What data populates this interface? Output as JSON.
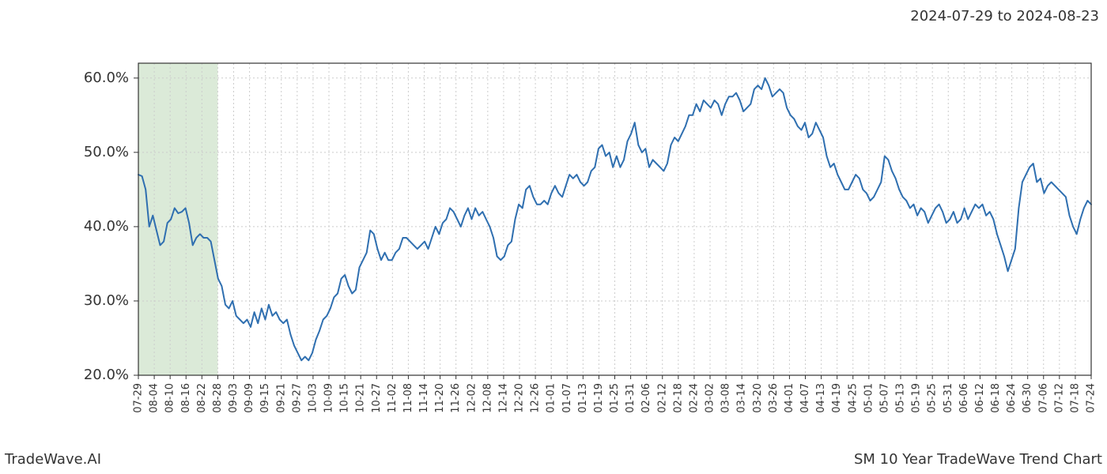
{
  "header": {
    "date_range": "2024-07-29 to 2024-08-23"
  },
  "footer": {
    "brand": "TradeWave.AI",
    "chart_title": "SM 10 Year TradeWave Trend Chart"
  },
  "chart": {
    "type": "line",
    "background_color": "#ffffff",
    "plot_border_color": "#333333",
    "plot_border_width": 1.2,
    "grid_color": "#cccccc",
    "grid_dash": "2,3",
    "line_color": "#2f6fb0",
    "line_width": 2.0,
    "highlight_band": {
      "fill": "#dbead8",
      "x_start_label": "07-29",
      "x_end_label": "08-28"
    },
    "y_axis": {
      "min": 20.0,
      "max": 62.0,
      "ticks": [
        20.0,
        30.0,
        40.0,
        50.0,
        60.0
      ],
      "tick_labels": [
        "20.0%",
        "30.0%",
        "40.0%",
        "50.0%",
        "60.0%"
      ],
      "label_fontsize": 18
    },
    "x_axis": {
      "tick_labels": [
        "07-29",
        "08-04",
        "08-10",
        "08-16",
        "08-22",
        "08-28",
        "09-03",
        "09-09",
        "09-15",
        "09-21",
        "09-27",
        "10-03",
        "10-09",
        "10-15",
        "10-21",
        "10-27",
        "11-02",
        "11-08",
        "11-14",
        "11-20",
        "11-26",
        "12-02",
        "12-08",
        "12-14",
        "12-20",
        "12-26",
        "01-01",
        "01-07",
        "01-13",
        "01-19",
        "01-25",
        "01-31",
        "02-06",
        "02-12",
        "02-18",
        "02-24",
        "03-02",
        "03-08",
        "03-14",
        "03-20",
        "03-26",
        "04-01",
        "04-07",
        "04-13",
        "04-19",
        "04-25",
        "05-01",
        "05-07",
        "05-13",
        "05-19",
        "05-25",
        "05-31",
        "06-06",
        "06-12",
        "06-18",
        "06-24",
        "06-30",
        "07-06",
        "07-12",
        "07-18",
        "07-24"
      ],
      "label_fontsize": 13,
      "label_rotation_deg": 90
    },
    "series": [
      {
        "name": "SM 10Y Trend",
        "color": "#2f6fb0",
        "values": [
          47.0,
          46.8,
          45.0,
          40.0,
          41.5,
          39.5,
          37.5,
          38.0,
          40.5,
          41.0,
          42.5,
          41.8,
          42.0,
          42.5,
          40.5,
          37.5,
          38.5,
          39.0,
          38.5,
          38.5,
          38.0,
          35.5,
          33.0,
          32.0,
          29.5,
          29.0,
          30.0,
          28.0,
          27.5,
          27.0,
          27.5,
          26.5,
          28.5,
          27.0,
          29.0,
          27.5,
          29.5,
          28.0,
          28.5,
          27.5,
          27.0,
          27.5,
          25.5,
          24.0,
          23.0,
          22.0,
          22.5,
          22.0,
          23.0,
          24.8,
          26.0,
          27.5,
          28.0,
          29.0,
          30.5,
          31.0,
          33.0,
          33.5,
          32.0,
          31.0,
          31.5,
          34.5,
          35.5,
          36.5,
          39.5,
          39.0,
          37.0,
          35.5,
          36.5,
          35.5,
          35.5,
          36.5,
          37.0,
          38.5,
          38.5,
          38.0,
          37.5,
          37.0,
          37.5,
          38.0,
          37.0,
          38.5,
          40.0,
          39.0,
          40.5,
          41.0,
          42.5,
          42.0,
          41.0,
          40.0,
          41.5,
          42.5,
          41.0,
          42.5,
          41.5,
          42.0,
          41.0,
          40.0,
          38.5,
          36.0,
          35.5,
          36.0,
          37.5,
          38.0,
          41.0,
          43.0,
          42.5,
          45.0,
          45.5,
          44.0,
          43.0,
          43.0,
          43.5,
          43.0,
          44.5,
          45.5,
          44.5,
          44.0,
          45.5,
          47.0,
          46.5,
          47.0,
          46.0,
          45.5,
          46.0,
          47.5,
          48.0,
          50.5,
          51.0,
          49.5,
          50.0,
          48.0,
          49.5,
          48.0,
          49.0,
          51.5,
          52.5,
          54.0,
          51.0,
          50.0,
          50.5,
          48.0,
          49.0,
          48.5,
          48.0,
          47.5,
          48.5,
          51.0,
          52.0,
          51.5,
          52.5,
          53.5,
          55.0,
          55.0,
          56.5,
          55.5,
          57.0,
          56.5,
          56.0,
          57.0,
          56.5,
          55.0,
          56.5,
          57.5,
          57.5,
          58.0,
          57.0,
          55.5,
          56.0,
          56.5,
          58.5,
          59.0,
          58.5,
          60.0,
          59.0,
          57.5,
          58.0,
          58.5,
          58.0,
          56.0,
          55.0,
          54.5,
          53.5,
          53.0,
          54.0,
          52.0,
          52.5,
          54.0,
          53.0,
          52.0,
          49.5,
          48.0,
          48.5,
          47.0,
          46.0,
          45.0,
          45.0,
          46.0,
          47.0,
          46.5,
          45.0,
          44.5,
          43.5,
          44.0,
          45.0,
          46.0,
          49.5,
          49.0,
          47.5,
          46.5,
          45.0,
          44.0,
          43.5,
          42.5,
          43.0,
          41.5,
          42.5,
          42.0,
          40.5,
          41.5,
          42.5,
          43.0,
          42.0,
          40.5,
          41.0,
          42.0,
          40.5,
          41.0,
          42.5,
          41.0,
          42.0,
          43.0,
          42.5,
          43.0,
          41.5,
          42.0,
          41.0,
          39.0,
          37.5,
          36.0,
          34.0,
          35.5,
          37.0,
          42.5,
          46.0,
          47.0,
          48.0,
          48.5,
          46.0,
          46.5,
          44.5,
          45.5,
          46.0,
          45.5,
          45.0,
          44.5,
          44.0,
          41.5,
          40.0,
          39.0,
          41.0,
          42.5,
          43.5,
          43.0
        ]
      }
    ]
  }
}
